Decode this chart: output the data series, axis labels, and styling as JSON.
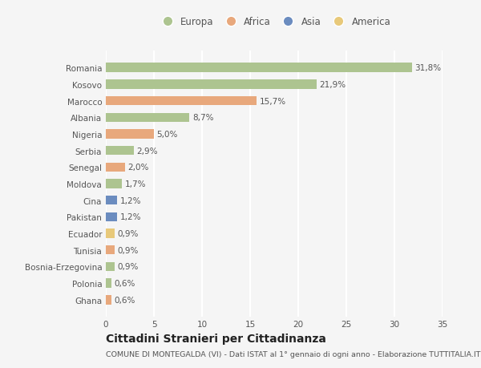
{
  "countries": [
    "Romania",
    "Kosovo",
    "Marocco",
    "Albania",
    "Nigeria",
    "Serbia",
    "Senegal",
    "Moldova",
    "Cina",
    "Pakistan",
    "Ecuador",
    "Tunisia",
    "Bosnia-Erzegovina",
    "Polonia",
    "Ghana"
  ],
  "values": [
    31.8,
    21.9,
    15.7,
    8.7,
    5.0,
    2.9,
    2.0,
    1.7,
    1.2,
    1.2,
    0.9,
    0.9,
    0.9,
    0.6,
    0.6
  ],
  "labels": [
    "31,8%",
    "21,9%",
    "15,7%",
    "8,7%",
    "5,0%",
    "2,9%",
    "2,0%",
    "1,7%",
    "1,2%",
    "1,2%",
    "0,9%",
    "0,9%",
    "0,9%",
    "0,6%",
    "0,6%"
  ],
  "continents": [
    "Europa",
    "Europa",
    "Africa",
    "Europa",
    "Africa",
    "Europa",
    "Africa",
    "Europa",
    "Asia",
    "Asia",
    "America",
    "Africa",
    "Europa",
    "Europa",
    "Africa"
  ],
  "continent_colors": {
    "Europa": "#adc490",
    "Africa": "#e8a87c",
    "Asia": "#6b8cbf",
    "America": "#e8c97a"
  },
  "legend_order": [
    "Europa",
    "Africa",
    "Asia",
    "America"
  ],
  "title": "Cittadini Stranieri per Cittadinanza",
  "subtitle": "COMUNE DI MONTEGALDA (VI) - Dati ISTAT al 1° gennaio di ogni anno - Elaborazione TUTTITALIA.IT",
  "xlim": [
    0,
    35
  ],
  "xticks": [
    0,
    5,
    10,
    15,
    20,
    25,
    30,
    35
  ],
  "bg_color": "#f5f5f5",
  "bar_height": 0.55,
  "grid_color": "#ffffff",
  "label_fontsize": 7.5,
  "tick_fontsize": 7.5,
  "ytick_fontsize": 7.5,
  "legend_fontsize": 8.5,
  "title_fontsize": 10,
  "subtitle_fontsize": 6.8
}
